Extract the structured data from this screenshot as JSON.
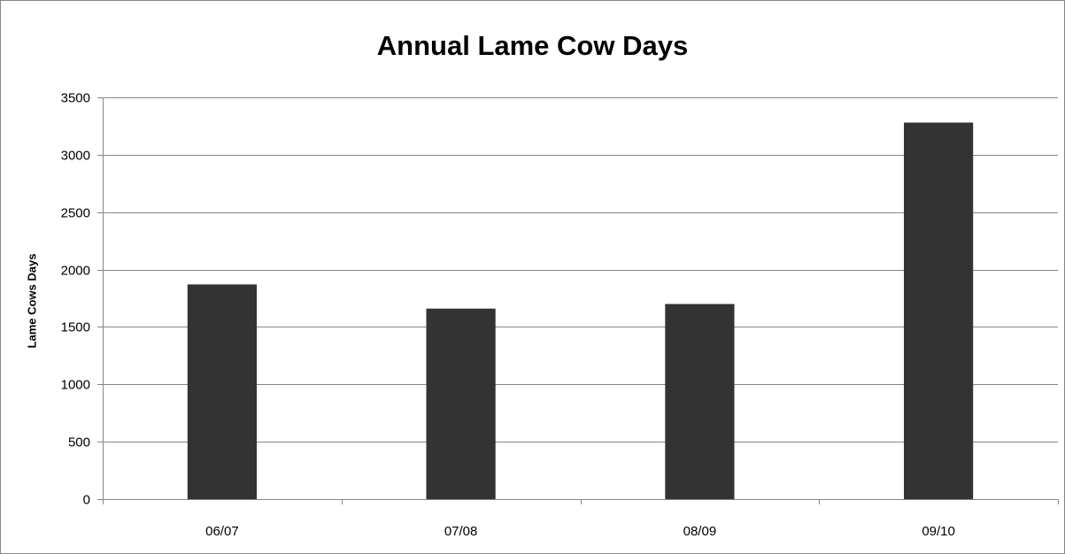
{
  "chart_data": {
    "type": "bar",
    "title": "Annual Lame Cow Days",
    "xlabel": "",
    "ylabel": "Lame Cows Days",
    "categories": [
      "06/07",
      "07/08",
      "08/09",
      "09/10"
    ],
    "values": [
      1870,
      1660,
      1700,
      3280
    ],
    "ylim": [
      0,
      3500
    ],
    "yticks": [
      0,
      500,
      1000,
      1500,
      2000,
      2500,
      3000,
      3500
    ],
    "grid": "horizontal",
    "legend": "none",
    "bar_color": "#333333",
    "grid_color": "#868686",
    "frame_color": "#868686"
  }
}
